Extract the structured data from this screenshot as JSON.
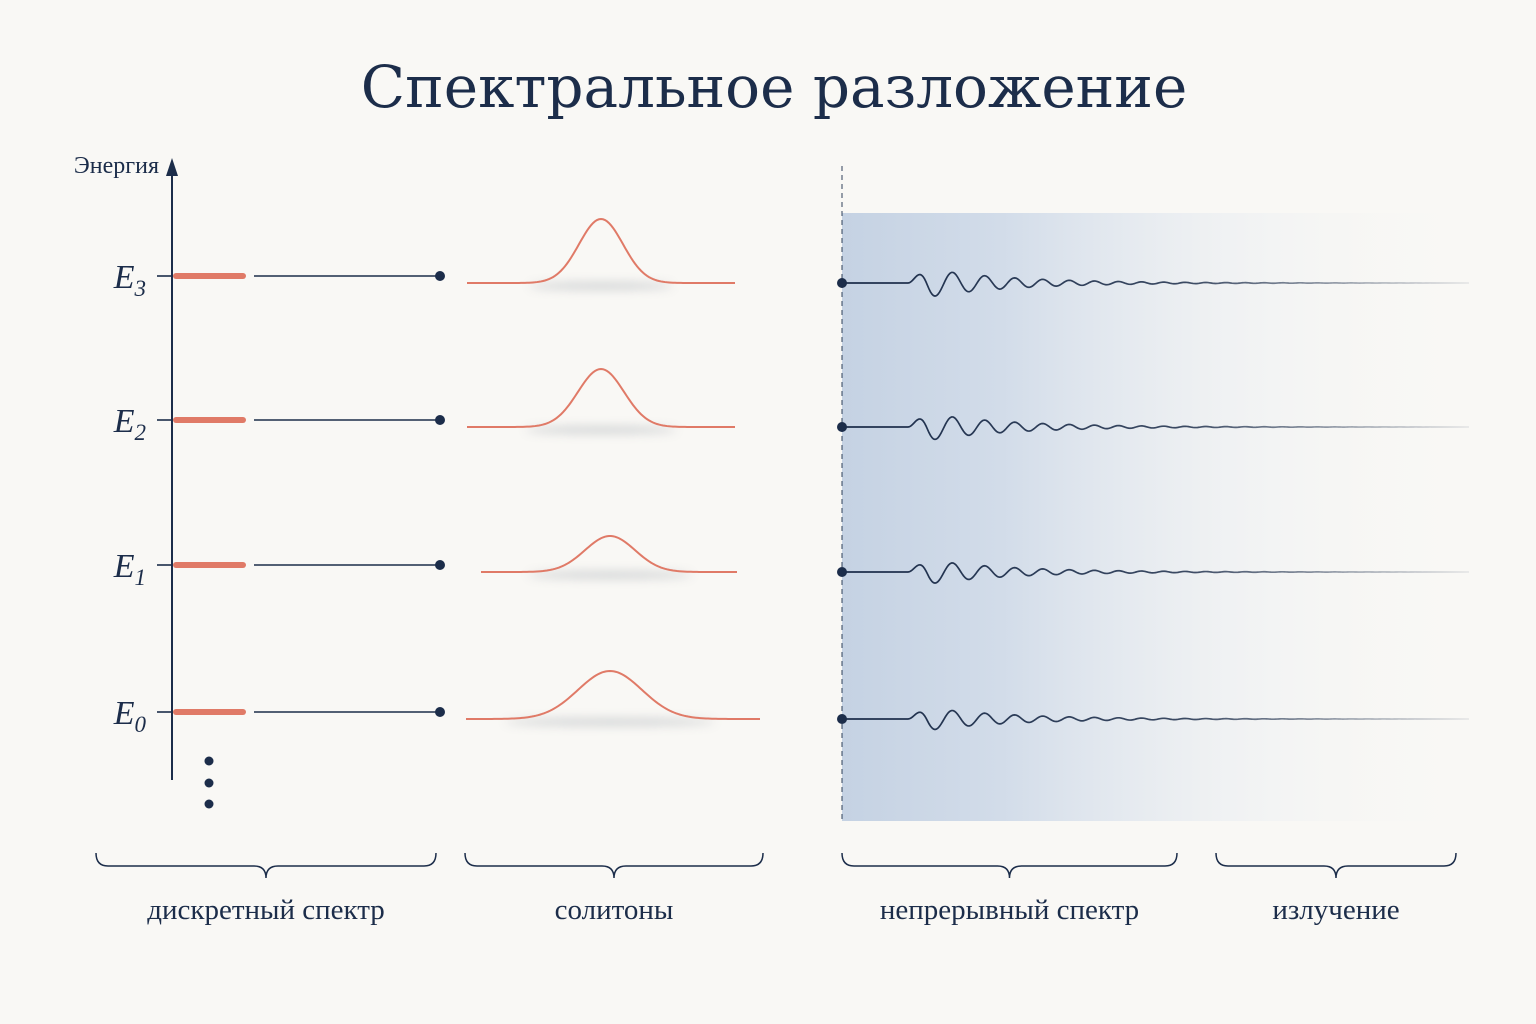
{
  "title": "Спектральное разложение",
  "axis_label": "Энергия",
  "levels": [
    {
      "symbol": "E",
      "sub": "3",
      "soliton_amp": 1.0,
      "soliton_width": 1.0,
      "wave_amp": 1.0
    },
    {
      "symbol": "E",
      "sub": "2",
      "soliton_amp": 0.88,
      "soliton_width": 1.05,
      "wave_amp": 0.95
    },
    {
      "symbol": "E",
      "sub": "1",
      "soliton_amp": 0.55,
      "soliton_width": 1.1,
      "wave_amp": 0.85
    },
    {
      "symbol": "E",
      "sub": "0",
      "soliton_amp": 0.72,
      "soliton_width": 1.35,
      "wave_amp": 0.8
    }
  ],
  "groups": [
    {
      "label": "дискретный спектр"
    },
    {
      "label": "солитоны"
    },
    {
      "label": "непрерывный спектр"
    },
    {
      "label": "излучение"
    }
  ],
  "colors": {
    "ink": "#1c2d4a",
    "accent": "#e07a67",
    "continuum": "#c2d0e2",
    "background": "#f9f8f5"
  }
}
